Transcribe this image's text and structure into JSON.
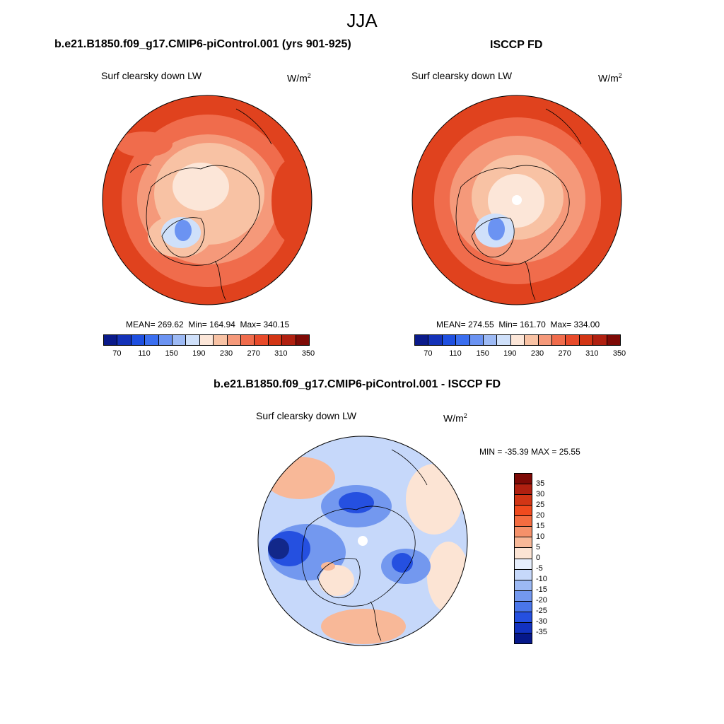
{
  "season": "JJA",
  "panel_model": {
    "case_title": "b.e21.B1850.f09_g17.CMIP6-piControl.001 (yrs 901-925)",
    "variable": "Surf clearsky down LW",
    "unit_base": "W/m",
    "unit_exp": "2",
    "mean_label": "MEAN=",
    "mean": "269.62",
    "min_label": "Min=",
    "min": "164.94",
    "max_label": "Max=",
    "max": "340.15"
  },
  "panel_obs": {
    "case_title": "ISCCP FD",
    "variable": "Surf clearsky down LW",
    "unit_base": "W/m",
    "unit_exp": "2",
    "mean_label": "MEAN=",
    "mean": "274.55",
    "min_label": "Min=",
    "min": "161.70",
    "max_label": "Max=",
    "max": "334.00"
  },
  "panel_diff": {
    "case_title": "b.e21.B1850.f09_g17.CMIP6-piControl.001 - ISCCP FD",
    "variable": "Surf clearsky down LW",
    "unit_base": "W/m",
    "unit_exp": "2",
    "minmax": "MIN = -35.39 MAX =  25.55"
  },
  "colorbar_main": {
    "colors": [
      "#0a1a8a",
      "#1432b8",
      "#1e4fe0",
      "#3a6ef0",
      "#6b93f2",
      "#9dbaf5",
      "#cfe0fa",
      "#fce6d8",
      "#f8c2a4",
      "#f5997a",
      "#f06c4c",
      "#e84a2a",
      "#d23515",
      "#b02010",
      "#7e0a06"
    ],
    "tick_labels": [
      "70",
      "110",
      "150",
      "190",
      "230",
      "270",
      "310",
      "350"
    ]
  },
  "colorbar_diff": {
    "colors": [
      "#7e0a06",
      "#b02010",
      "#d23515",
      "#f04a1e",
      "#f46c40",
      "#f5916a",
      "#f8b898",
      "#fce4d4",
      "#e6eefc",
      "#c6d8fa",
      "#9cb9f4",
      "#7398ef",
      "#4a76ea",
      "#2550e0",
      "#1232c0",
      "#06188a"
    ],
    "tick_labels": [
      "35",
      "30",
      "25",
      "20",
      "15",
      "10",
      "5",
      "0",
      "-5",
      "-10",
      "-15",
      "-20",
      "-25",
      "-30",
      "-35"
    ]
  },
  "map_colors": {
    "warm_dark": "#e0421e",
    "warm": "#f06c4c",
    "warm_mid": "#f5997a",
    "warm_light": "#f8c2a4",
    "pale": "#fce6d8",
    "cool_light": "#cfe0fa",
    "cool": "#6b93f2",
    "diff_base": "#c6d8fa",
    "diff_blue": "#7398ef",
    "diff_dark": "#2550e0",
    "diff_darkest": "#12288a",
    "diff_warm": "#f8b898",
    "diff_pale": "#fce4d4"
  }
}
